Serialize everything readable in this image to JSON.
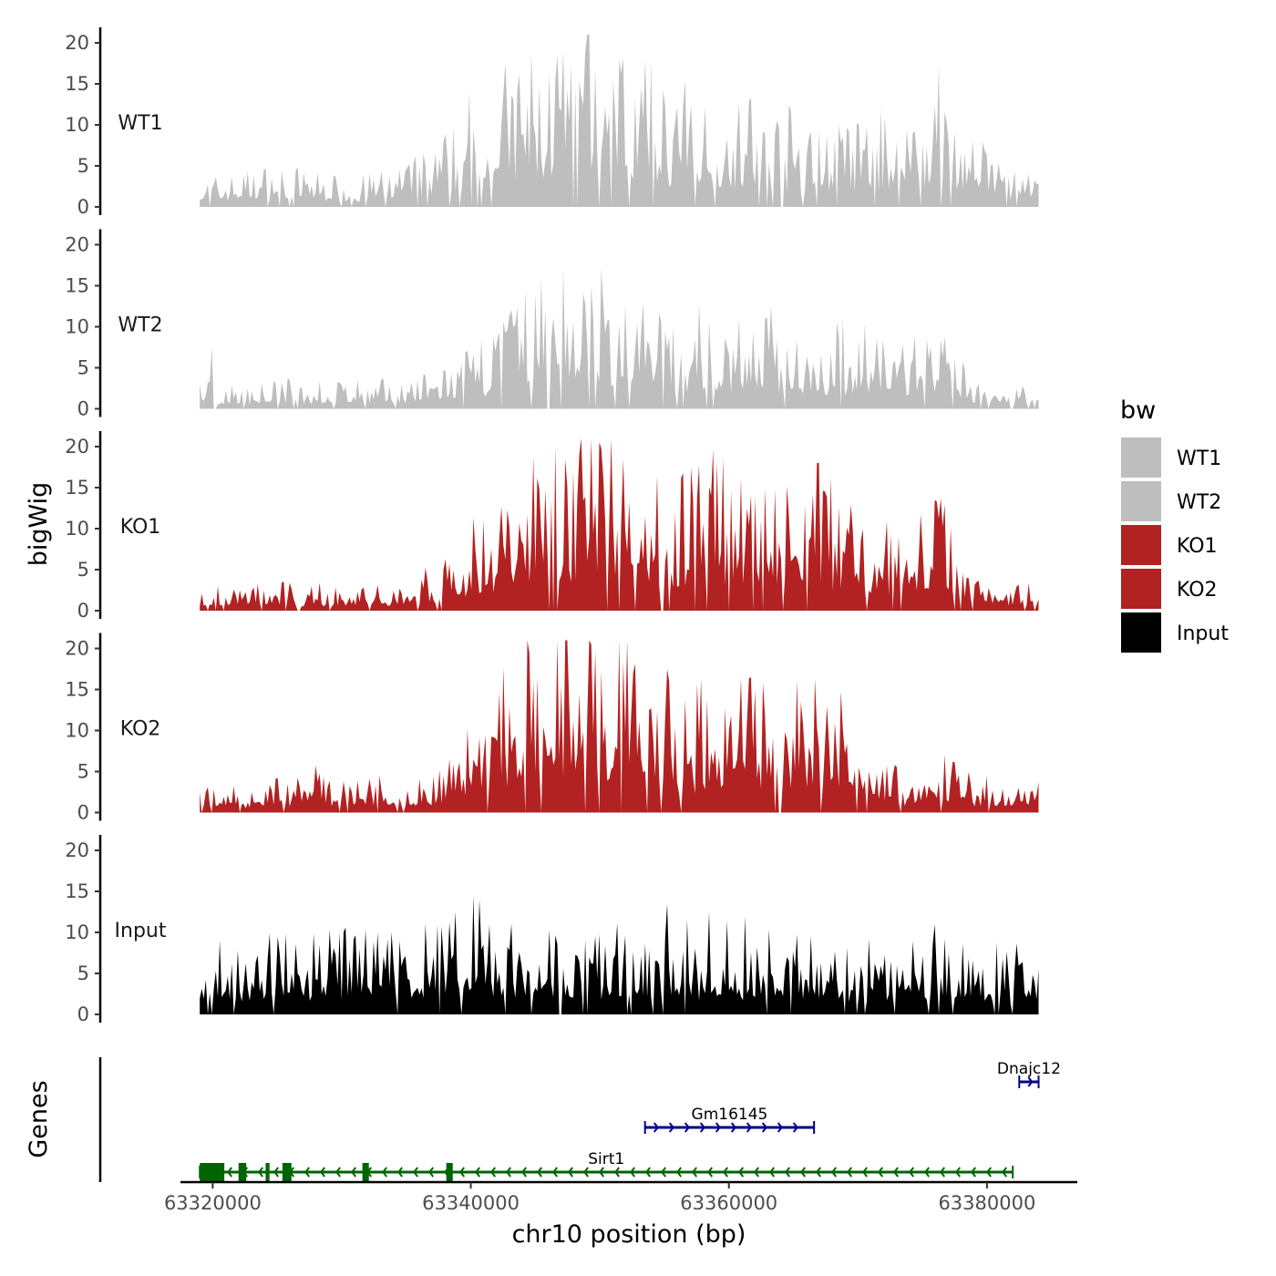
{
  "chart_data": {
    "type": "area",
    "title": "",
    "xlabel": "chr10 position (bp)",
    "ylabel": "bigWig",
    "genes_ylabel": "Genes",
    "xlim": [
      63317500,
      63387000
    ],
    "data_range": [
      63319000,
      63384000
    ],
    "ylim": [
      0,
      21
    ],
    "y_ticks": [
      0,
      5,
      10,
      15,
      20
    ],
    "x_ticks": [
      63320000,
      63340000,
      63360000,
      63380000
    ],
    "x_tick_labels": [
      "63320000",
      "63340000",
      "63360000",
      "63380000"
    ],
    "legend": {
      "title": "bw",
      "position": "right",
      "entries": [
        {
          "label": "WT1",
          "color": "#bebebe"
        },
        {
          "label": "WT2",
          "color": "#bebebe"
        },
        {
          "label": "KO1",
          "color": "#b22222"
        },
        {
          "label": "KO2",
          "color": "#b22222"
        },
        {
          "label": "Input",
          "color": "#000000"
        }
      ]
    },
    "series": [
      {
        "name": "WT1",
        "color": "#bebebe",
        "profile": [
          [
            63319000,
            2
          ],
          [
            63322000,
            2.5
          ],
          [
            63325000,
            3
          ],
          [
            63328000,
            2.5
          ],
          [
            63331000,
            2
          ],
          [
            63334000,
            3
          ],
          [
            63337000,
            4
          ],
          [
            63340000,
            8
          ],
          [
            63343000,
            10
          ],
          [
            63346000,
            12
          ],
          [
            63349000,
            13
          ],
          [
            63352000,
            11
          ],
          [
            63355000,
            9
          ],
          [
            63358000,
            8
          ],
          [
            63361000,
            8
          ],
          [
            63364000,
            7
          ],
          [
            63367000,
            6
          ],
          [
            63370000,
            6
          ],
          [
            63373000,
            7
          ],
          [
            63376000,
            9
          ],
          [
            63379000,
            5
          ],
          [
            63382000,
            3
          ],
          [
            63384000,
            2
          ]
        ],
        "peaks": [
          [
            63347100,
            19
          ],
          [
            63348800,
            18.8
          ],
          [
            63376300,
            17.3
          ],
          [
            63351500,
            17.9
          ],
          [
            63353200,
            14.5
          ],
          [
            63345300,
            14.8
          ]
        ]
      },
      {
        "name": "WT2",
        "color": "#bebebe",
        "profile": [
          [
            63319000,
            2
          ],
          [
            63322000,
            1.5
          ],
          [
            63325000,
            2
          ],
          [
            63328000,
            2
          ],
          [
            63331000,
            2
          ],
          [
            63334000,
            2
          ],
          [
            63337000,
            2.5
          ],
          [
            63340000,
            4
          ],
          [
            63343000,
            8
          ],
          [
            63346000,
            9
          ],
          [
            63349000,
            9
          ],
          [
            63352000,
            9
          ],
          [
            63355000,
            7
          ],
          [
            63358000,
            7
          ],
          [
            63361000,
            7
          ],
          [
            63364000,
            6
          ],
          [
            63367000,
            6
          ],
          [
            63370000,
            6
          ],
          [
            63373000,
            5
          ],
          [
            63376000,
            6
          ],
          [
            63379000,
            2
          ],
          [
            63382000,
            2
          ],
          [
            63384000,
            2
          ]
        ],
        "peaks": [
          [
            63320000,
            7.5
          ],
          [
            63347200,
            17
          ],
          [
            63349400,
            15
          ],
          [
            63345500,
            16
          ],
          [
            63363200,
            12.5
          ]
        ]
      },
      {
        "name": "KO1",
        "color": "#b22222",
        "profile": [
          [
            63319000,
            1.5
          ],
          [
            63322000,
            2
          ],
          [
            63325000,
            2
          ],
          [
            63328000,
            2
          ],
          [
            63331000,
            1.5
          ],
          [
            63334000,
            2
          ],
          [
            63337000,
            3
          ],
          [
            63340000,
            6
          ],
          [
            63343000,
            9
          ],
          [
            63346000,
            12
          ],
          [
            63349000,
            14
          ],
          [
            63352000,
            12
          ],
          [
            63355000,
            10
          ],
          [
            63358000,
            11
          ],
          [
            63361000,
            10
          ],
          [
            63364000,
            9
          ],
          [
            63367000,
            9
          ],
          [
            63370000,
            8
          ],
          [
            63373000,
            6
          ],
          [
            63376000,
            9
          ],
          [
            63379000,
            3
          ],
          [
            63382000,
            2
          ],
          [
            63384000,
            2
          ]
        ],
        "peaks": [
          [
            63346600,
            20
          ],
          [
            63350000,
            20.5
          ],
          [
            63359600,
            18.5
          ],
          [
            63366900,
            18
          ],
          [
            63375900,
            13.5
          ],
          [
            63348000,
            17
          ]
        ]
      },
      {
        "name": "KO2",
        "color": "#b22222",
        "profile": [
          [
            63319000,
            2
          ],
          [
            63322000,
            2
          ],
          [
            63325000,
            2.5
          ],
          [
            63328000,
            3
          ],
          [
            63331000,
            2.5
          ],
          [
            63334000,
            2.5
          ],
          [
            63337000,
            2.5
          ],
          [
            63340000,
            7
          ],
          [
            63343000,
            11
          ],
          [
            63346000,
            12
          ],
          [
            63349000,
            14
          ],
          [
            63352000,
            12
          ],
          [
            63355000,
            9
          ],
          [
            63358000,
            9
          ],
          [
            63361000,
            9
          ],
          [
            63364000,
            11
          ],
          [
            63367000,
            9
          ],
          [
            63370000,
            8
          ],
          [
            63373000,
            3
          ],
          [
            63376000,
            4
          ],
          [
            63379000,
            3
          ],
          [
            63382000,
            2
          ],
          [
            63384000,
            2
          ]
        ],
        "peaks": [
          [
            63349300,
            20.5
          ],
          [
            63352600,
            17
          ],
          [
            63347000,
            15.5
          ],
          [
            63361700,
            16.5
          ],
          [
            63365600,
            13.5
          ]
        ]
      },
      {
        "name": "Input",
        "color": "#000000",
        "profile": [
          [
            63319000,
            5
          ],
          [
            63322000,
            5
          ],
          [
            63325000,
            6
          ],
          [
            63328000,
            6
          ],
          [
            63331000,
            6
          ],
          [
            63334000,
            6.5
          ],
          [
            63337000,
            6
          ],
          [
            63340000,
            8
          ],
          [
            63343000,
            7
          ],
          [
            63346000,
            6
          ],
          [
            63349000,
            6
          ],
          [
            63352000,
            6
          ],
          [
            63355000,
            6.5
          ],
          [
            63358000,
            6
          ],
          [
            63361000,
            6
          ],
          [
            63364000,
            6
          ],
          [
            63367000,
            5.5
          ],
          [
            63370000,
            5.5
          ],
          [
            63373000,
            5.5
          ],
          [
            63376000,
            5.5
          ],
          [
            63379000,
            5
          ],
          [
            63382000,
            5
          ],
          [
            63384000,
            4.5
          ]
        ],
        "peaks": [
          [
            63340200,
            14.5
          ],
          [
            63340600,
            14
          ],
          [
            63355200,
            13.5
          ],
          [
            63358400,
            12.5
          ],
          [
            63361300,
            12
          ],
          [
            63376000,
            11
          ]
        ]
      }
    ],
    "genes": [
      {
        "name": "Sirt1",
        "strand": "-",
        "start": 63319000,
        "end": 63382000,
        "color": "#006400",
        "row": 0,
        "exons": [
          [
            63319000,
            63320900
          ],
          [
            63322000,
            63322600
          ],
          [
            63324100,
            63324400
          ],
          [
            63325400,
            63326100
          ],
          [
            63331600,
            63332100
          ],
          [
            63338100,
            63338600
          ]
        ]
      },
      {
        "name": "Gm16145",
        "strand": "+",
        "start": 63353500,
        "end": 63366600,
        "color": "#00008b",
        "row": 1,
        "exons": []
      },
      {
        "name": "Dnajc12",
        "strand": "+",
        "start": 63382500,
        "end": 63384000,
        "color": "#00008b",
        "row": 2,
        "exons": []
      }
    ]
  }
}
